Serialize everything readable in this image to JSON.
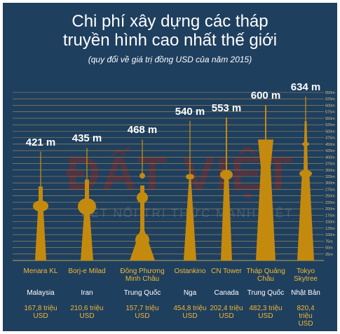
{
  "title": {
    "line1": "Chi phí xây dựng các tháp",
    "line2": "truyền hình cao nhất thế giới",
    "subtitle": "(quy đổi về giá trị đồng USD của năm 2015)"
  },
  "watermark": {
    "main": "ĐẤT VIỆT",
    "sub": "KẾT NỐI TRI THỨC MẠNH VIỆT"
  },
  "colors": {
    "background": "#1f3f5f",
    "tower": "#c48a0e",
    "grid": "#c4a24e",
    "accent": "#f0b933",
    "text": "#ffffff"
  },
  "chart_data": {
    "type": "bar",
    "title": "Chi phí xây dựng các tháp truyền hình cao nhất thế giới",
    "subtitle": "(quy đổi về giá trị đồng USD của năm 2015)",
    "categories": [
      "Menara KL",
      "Borj-e Milad",
      "Đông Phương Minh Châu",
      "Ostankino",
      "CN Tower",
      "Tháp Quảng Châu",
      "Tokyo Skytree"
    ],
    "category_lines": [
      [
        "Menara KL"
      ],
      [
        "Borj-e Milad"
      ],
      [
        "Đông Phương",
        "Minh Châu"
      ],
      [
        "Ostankino"
      ],
      [
        "CN Tower"
      ],
      [
        "Tháp Quảng",
        "Châu"
      ],
      [
        "Tokyo",
        "Skytree"
      ]
    ],
    "countries": [
      "Malaysia",
      "Iran",
      "Trung Quốc",
      "Nga",
      "Canada",
      "Trung Quốc",
      "Nhật Bản"
    ],
    "heights": [
      421,
      435,
      468,
      540,
      553,
      600,
      634
    ],
    "height_labels": [
      "421 m",
      "435 m",
      "468 m",
      "540 m",
      "553 m",
      "600 m",
      "634 m"
    ],
    "costs": [
      167.8,
      210.6,
      157.7,
      454.8,
      202.4,
      482.3,
      820.4
    ],
    "cost_labels": [
      [
        "167,8 triệu",
        "USD"
      ],
      [
        "210,6 triệu",
        "USD"
      ],
      [
        "157,7 triệu",
        "USD"
      ],
      [
        "454,8 triệu",
        "USD"
      ],
      [
        "202,4 triệu",
        "USD"
      ],
      [
        "482,3 triệu",
        "USD"
      ],
      [
        "820,4 triệu",
        "USD"
      ]
    ],
    "y_ticks": [
      25,
      50,
      75,
      100,
      125,
      150,
      175,
      200,
      225,
      250,
      275,
      300,
      325,
      350,
      375,
      400,
      425,
      450,
      475,
      500,
      525,
      550,
      575,
      600,
      625,
      650
    ],
    "y_tick_labels": [
      "25m",
      "50m",
      "75m",
      "100m",
      "125m",
      "150m",
      "175m",
      "200m",
      "225m",
      "250m",
      "275m",
      "300m",
      "325m",
      "350m",
      "375m",
      "400m",
      "425m",
      "450m",
      "475m",
      "500m",
      "525m",
      "550m",
      "575m",
      "600m",
      "625m",
      "650m"
    ],
    "ylim": [
      0,
      650
    ],
    "grid": true
  }
}
